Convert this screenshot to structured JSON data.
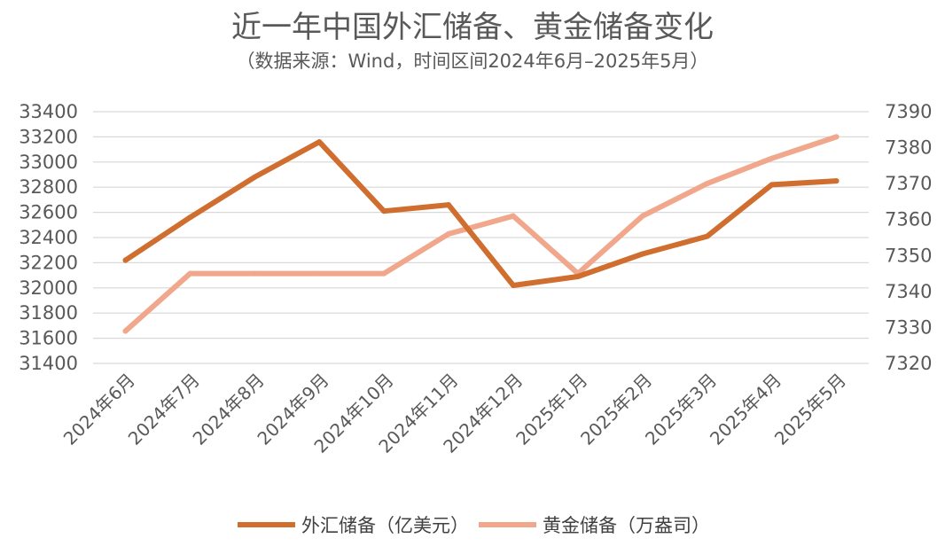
{
  "colors": {
    "series_forex": "#D06E2F",
    "series_gold": "#F1A78C",
    "grid": "#d9d9d9",
    "text": "#595959"
  },
  "chart_data": {
    "type": "line",
    "title": "近一年中国外汇储备、黄金储备变化",
    "subtitle": "（数据来源：Wind，时间区间2024年6月–2025年5月）",
    "categories": [
      "2024年6月",
      "2024年7月",
      "2024年8月",
      "2024年9月",
      "2024年10月",
      "2024年11月",
      "2024年12月",
      "2025年1月",
      "2025年2月",
      "2025年3月",
      "2025年4月",
      "2025年5月"
    ],
    "y_left": {
      "min": 31400,
      "max": 33400,
      "ticks": [
        33400,
        33200,
        33000,
        32800,
        32600,
        32400,
        32200,
        32000,
        31800,
        31600,
        31400
      ]
    },
    "y_right": {
      "min": 7320,
      "max": 7390,
      "ticks": [
        7390,
        7380,
        7370,
        7360,
        7350,
        7340,
        7330,
        7320
      ]
    },
    "grid": true,
    "legend_position": "bottom",
    "series": [
      {
        "name": "外汇储备（亿美元）",
        "axis": "left",
        "values": [
          32220,
          32560,
          32880,
          33160,
          32610,
          32660,
          32020,
          32090,
          32270,
          32410,
          32820,
          32850
        ]
      },
      {
        "name": "黄金储备（万盎司）",
        "axis": "right",
        "values": [
          7329,
          7345,
          7345,
          7345,
          7345,
          7356,
          7361,
          7345,
          7361,
          7370,
          7377,
          7383
        ]
      }
    ]
  }
}
